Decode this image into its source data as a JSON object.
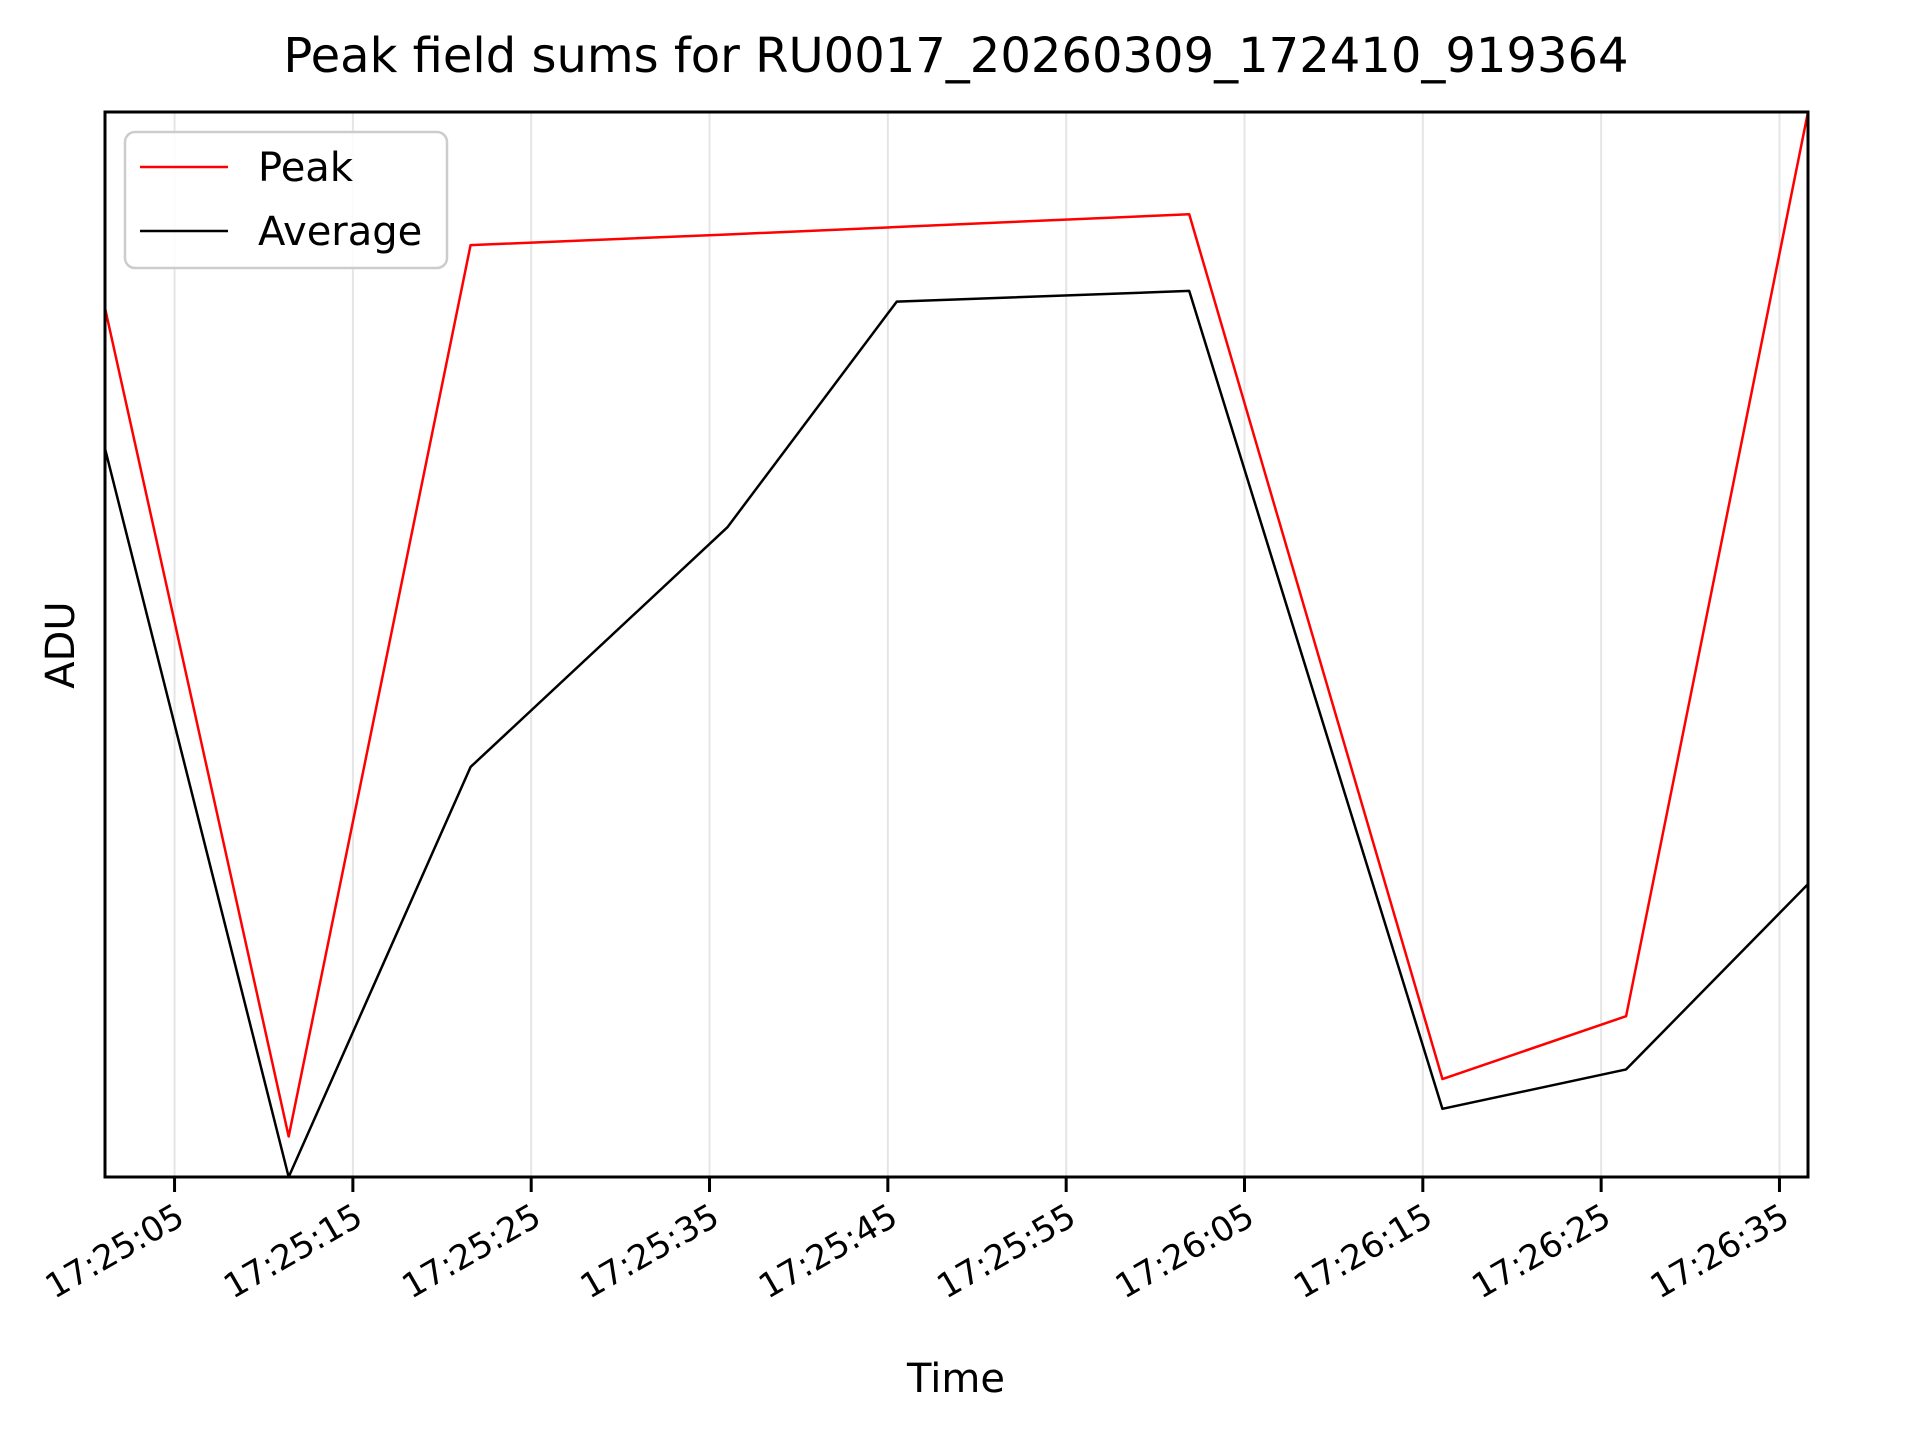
{
  "page": {
    "background": "#ffffff"
  },
  "chart_data": {
    "type": "line",
    "title": "Peak field sums for RU0017_20260309_172410_919364",
    "xlabel": "Time",
    "ylabel": "ADU",
    "grid": "vertical-only",
    "grid_color": "#e5e5e5",
    "axis_color": "#000000",
    "plot_bg_color": "#ffffff",
    "legend": {
      "position": "upper-left",
      "frame": true,
      "frame_color": "#cccccc",
      "entries": [
        "Peak",
        "Average"
      ]
    },
    "x_axis": {
      "tick_labels": [
        "17:25:05",
        "17:25:15",
        "17:25:25",
        "17:25:35",
        "17:25:45",
        "17:25:55",
        "17:26:05",
        "17:26:15",
        "17:26:25",
        "17:26:35"
      ],
      "tick_seconds": [
        5,
        15,
        25,
        35,
        45,
        55,
        65,
        75,
        85,
        95
      ],
      "range_seconds": [
        1.1,
        96.6
      ],
      "seconds_reference": "seconds after 17:25:00",
      "tick_rotation_deg": 30
    },
    "y_axis": {
      "tick_labels": [],
      "range": [
        0,
        1
      ],
      "note": "axis shows no numeric tick labels; series values below are normalized fractions of the visible axis height (0 = bottom spine, 1 = top spine)"
    },
    "x_seconds": [
      1.1,
      11.4,
      21.6,
      36.0,
      45.5,
      61.9,
      76.1,
      86.4,
      96.6
    ],
    "x_clock_times_approx": [
      "17:25:01",
      "17:25:11",
      "17:25:22",
      "17:25:36",
      "17:25:46",
      "17:26:02",
      "17:26:16",
      "17:26:26",
      "17:26:37"
    ],
    "series": [
      {
        "name": "Peak",
        "color": "#ff0000",
        "values": [
          0.816,
          0.038,
          0.875,
          0.885,
          0.892,
          0.904,
          0.092,
          0.151,
          1.0
        ]
      },
      {
        "name": "Average",
        "color": "#000000",
        "values": [
          0.684,
          0.0,
          0.385,
          0.61,
          0.822,
          0.832,
          0.064,
          0.101,
          0.275
        ]
      }
    ]
  }
}
